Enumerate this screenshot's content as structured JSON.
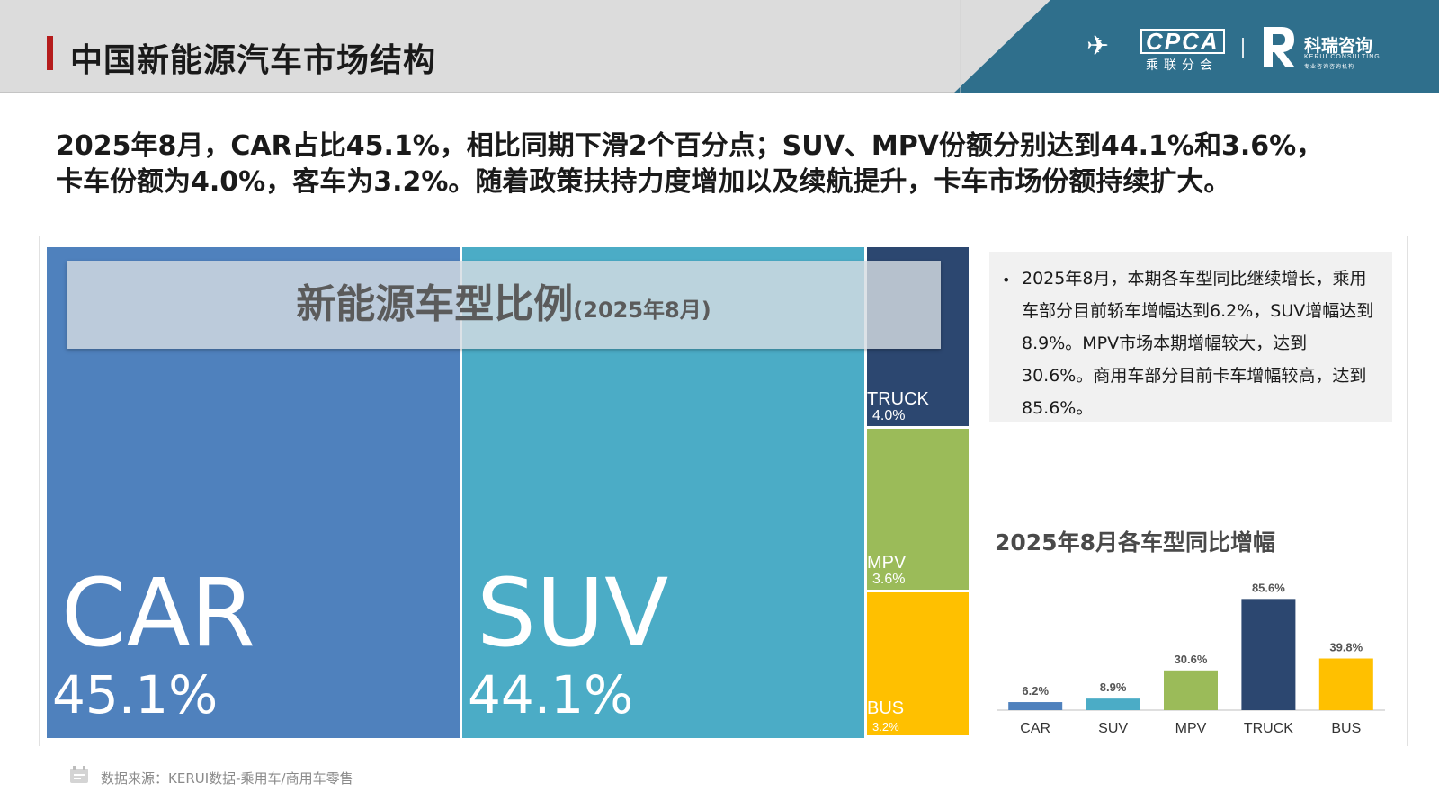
{
  "header": {
    "title": "中国新能源汽车市场结构",
    "cpca_logo_text": "CPCA",
    "cpca_logo_sub": "乘联分会",
    "kerui_name": "科瑞咨询",
    "kerui_en": "KERUI CONSULTING",
    "kerui_tagline": "专业咨询咨询机构"
  },
  "summary": {
    "line1": "2025年8月，CAR占比45.1%，相比同期下滑2个百分点；SUV、MPV份额分别达到44.1%和3.6%，",
    "line2": "卡车份额为4.0%，客车为3.2%。随着政策扶持力度增加以及续航提升，卡车市场份额持续扩大。"
  },
  "banner": {
    "title": "新能源车型比例",
    "subtitle": "(2025年8月)"
  },
  "note": {
    "bullet": "•",
    "text": "2025年8月，本期各车型同比继续增长，乘用车部分目前轿车增幅达到6.2%，SUV增幅达到8.9%。MPV市场本期增幅较大，达到30.6%。商用车部分目前卡车增幅较高，达到85.6%。"
  },
  "footer": {
    "source": "数据来源：KERUI数据-乘用车/商用车零售"
  },
  "colors": {
    "car": "#4f81bd",
    "suv": "#4bacc6",
    "truck": "#2c4770",
    "mpv": "#9bbb59",
    "bus": "#ffc000",
    "header_band": "#2f6f8c",
    "accent": "#b51c1c"
  },
  "chart_data": [
    {
      "type": "treemap",
      "title": "新能源车型比例",
      "subtitle": "(2025年8月)",
      "items": [
        {
          "name": "CAR",
          "share": 45.1,
          "label": "45.1%",
          "color": "#4f81bd"
        },
        {
          "name": "SUV",
          "share": 44.1,
          "label": "44.1%",
          "color": "#4bacc6"
        },
        {
          "name": "TRUCK",
          "share": 4.0,
          "label": "4.0%",
          "color": "#2c4770"
        },
        {
          "name": "MPV",
          "share": 3.6,
          "label": "3.6%",
          "color": "#9bbb59"
        },
        {
          "name": "BUS",
          "share": 3.2,
          "label": "3.2%",
          "color": "#ffc000"
        }
      ]
    },
    {
      "type": "bar",
      "title": "2025年8月各车型同比增幅",
      "categories": [
        "CAR",
        "SUV",
        "MPV",
        "TRUCK",
        "BUS"
      ],
      "values": [
        6.2,
        8.9,
        30.6,
        85.6,
        39.8
      ],
      "data_labels": [
        "6.2%",
        "8.9%",
        "30.6%",
        "85.6%",
        "39.8%"
      ],
      "colors": [
        "#4f81bd",
        "#4bacc6",
        "#9bbb59",
        "#2c4770",
        "#ffc000"
      ],
      "xlabel": "",
      "ylabel": "",
      "ylim": [
        0,
        90
      ],
      "grid": false
    }
  ]
}
